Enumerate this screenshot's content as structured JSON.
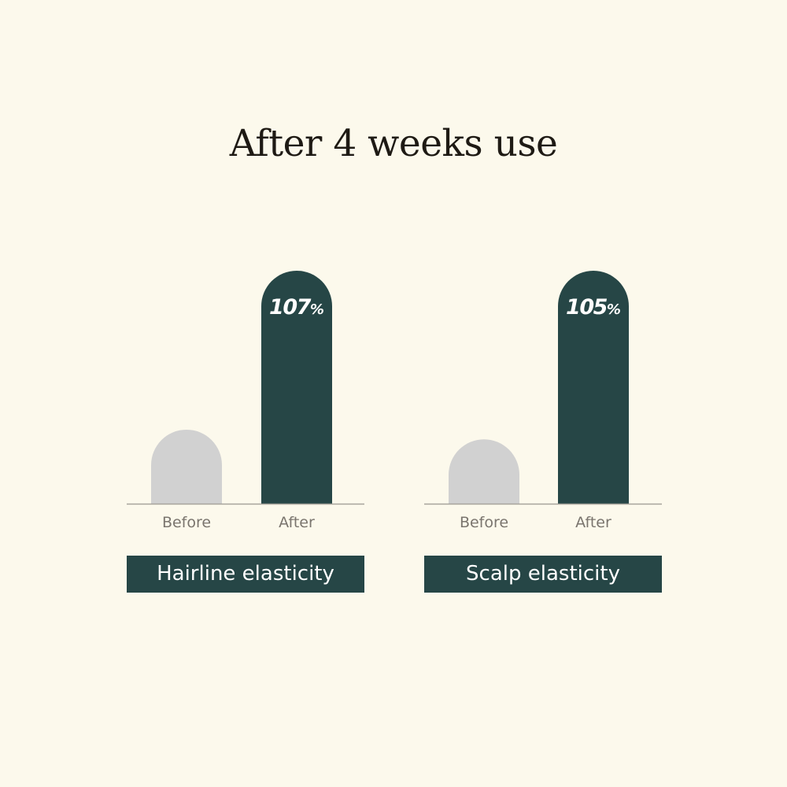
{
  "title": "After 4 weeks use",
  "colors": {
    "background": "#fcf9ec",
    "before": "#d1d1d1",
    "after": "#264646",
    "axis": "#a8a49c"
  },
  "chart_data": [
    {
      "type": "bar",
      "title": "Hairline elasticity",
      "categories": [
        "Before",
        "After"
      ],
      "values": [
        34,
        107
      ],
      "data_labels": [
        null,
        "107"
      ],
      "unit": "%",
      "grid": false
    },
    {
      "type": "bar",
      "title": "Scalp elasticity",
      "categories": [
        "Before",
        "After"
      ],
      "values": [
        29,
        105
      ],
      "data_labels": [
        null,
        "105"
      ],
      "unit": "%",
      "grid": false
    }
  ]
}
